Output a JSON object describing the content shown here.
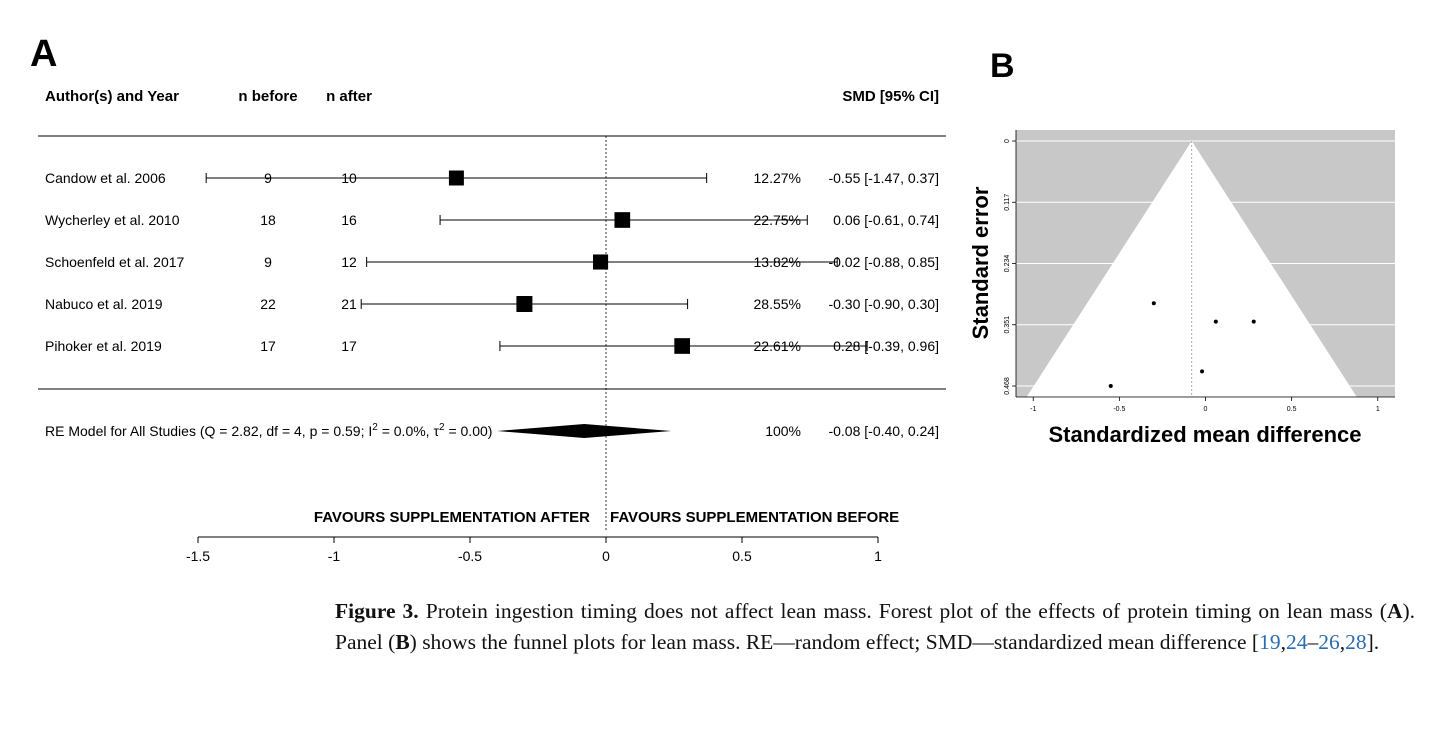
{
  "panel_a": {
    "label": "A",
    "headers": {
      "study": "Author(s) and Year",
      "n_before": "n before",
      "n_after": "n after",
      "smd": "SMD [95% CI]"
    },
    "summary_label": "RE Model for All Studies (Q = 2.82, df = 4, p = 0.59; I",
    "summary_sup1": "2",
    "summary_mid": " = 0.0%, τ",
    "summary_sup2": "2",
    "summary_end": " = 0.00)",
    "favours_left": "FAVOURS SUPPLEMENTATION AFTER",
    "favours_right": "FAVOURS SUPPLEMENTATION BEFORE"
  },
  "panel_b": {
    "label": "B",
    "ylabel": "Standard error",
    "xlabel": "Standardized mean difference"
  },
  "caption": {
    "fig_label": "Figure 3.",
    "text1": " Protein ingestion timing does not affect lean mass. Forest plot of the effects of protein timing on lean mass (",
    "a": "A",
    "text2": "). Panel (",
    "b": "B",
    "text3": ") shows the funnel plots for lean mass. RE—random effect; SMD—standardized mean difference [",
    "r1": "19",
    "c1": ",",
    "r2": "24",
    "d1": "–",
    "r3": "26",
    "c2": ",",
    "r4": "28",
    "text4": "]."
  },
  "chart_data": [
    {
      "type": "forest",
      "xlim": [
        -1.5,
        1
      ],
      "xticks": [
        -1.5,
        -1,
        -0.5,
        0,
        0.5,
        1
      ],
      "studies": [
        {
          "name": "Candow et al. 2006",
          "n_before": "9",
          "n_after": "10",
          "smd": -0.55,
          "lo": -1.47,
          "hi": 0.37,
          "weight": "12.27%",
          "ci_text": "-0.55 [-1.47, 0.37]"
        },
        {
          "name": "Wycherley et al. 2010",
          "n_before": "18",
          "n_after": "16",
          "smd": 0.06,
          "lo": -0.61,
          "hi": 0.74,
          "weight": "22.75%",
          "ci_text": "0.06 [-0.61, 0.74]"
        },
        {
          "name": "Schoenfeld et al. 2017",
          "n_before": "9",
          "n_after": "12",
          "smd": -0.02,
          "lo": -0.88,
          "hi": 0.85,
          "weight": "13.82%",
          "ci_text": "-0.02 [-0.88, 0.85]"
        },
        {
          "name": "Nabuco et al. 2019",
          "n_before": "22",
          "n_after": "21",
          "smd": -0.3,
          "lo": -0.9,
          "hi": 0.3,
          "weight": "28.55%",
          "ci_text": "-0.30 [-0.90, 0.30]"
        },
        {
          "name": "Pihoker et al. 2019",
          "n_before": "17",
          "n_after": "17",
          "smd": 0.28,
          "lo": -0.39,
          "hi": 0.96,
          "weight": "22.61%",
          "ci_text": "0.28 [-0.39, 0.96]"
        }
      ],
      "summary": {
        "smd": -0.08,
        "lo": -0.4,
        "hi": 0.24,
        "weight": "100%",
        "ci_text": "-0.08 [-0.40, 0.24]"
      }
    },
    {
      "type": "scatter",
      "xlim": [
        -1.1,
        1.1
      ],
      "ylim": [
        0.468,
        0
      ],
      "xticks": [
        -1,
        -0.5,
        0,
        0.5,
        1
      ],
      "xtick_labels": [
        "-1",
        "-0.5",
        "0",
        "0.5",
        "1"
      ],
      "yticks": [
        0,
        0.117,
        0.234,
        0.351,
        0.468
      ],
      "ytick_labels": [
        "0",
        "0.117",
        "0.234",
        "0.351",
        "0.468"
      ],
      "center": -0.08,
      "points": [
        {
          "x": -0.55,
          "y": 0.468
        },
        {
          "x": 0.06,
          "y": 0.345
        },
        {
          "x": -0.02,
          "y": 0.44
        },
        {
          "x": -0.3,
          "y": 0.31
        },
        {
          "x": 0.28,
          "y": 0.345
        }
      ]
    }
  ]
}
